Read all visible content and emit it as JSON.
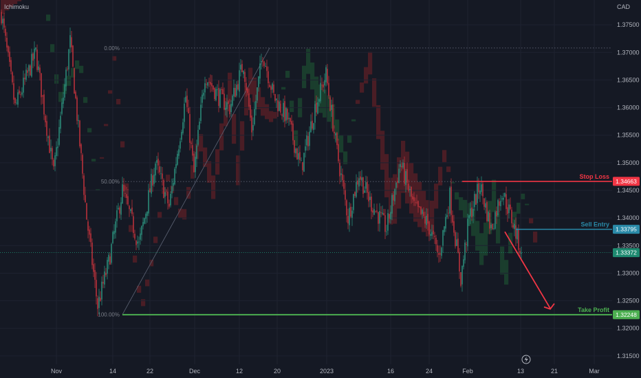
{
  "indicator_label": "Ichimoku",
  "currency": "CAD",
  "colors": {
    "background": "#151924",
    "bull": "#2a8a78",
    "bear": "#b8323a",
    "stop": "#f23645",
    "entry": "#2a8aa8",
    "take_profit": "#4caf50",
    "current": "#1e8a70",
    "cloud_bear": "#5c1f25",
    "cloud_bull": "#1c4a30"
  },
  "chart_data": {
    "type": "candlestick",
    "symbol": "",
    "ylim": [
      1.311,
      1.3795
    ],
    "y_ticks": [
      "1.37500",
      "1.37000",
      "1.36500",
      "1.36000",
      "1.35500",
      "1.35000",
      "1.34500",
      "1.34000",
      "1.33500",
      "1.33000",
      "1.32500",
      "1.32000",
      "1.31500"
    ],
    "x_ticks": [
      "Nov",
      "14",
      "22",
      "Dec",
      "12",
      "20",
      "2023",
      "16",
      "24",
      "Feb",
      "13",
      "21",
      "Mar"
    ],
    "fib_levels": [
      {
        "label": "0.00%",
        "price": 1.3708
      },
      {
        "label": "50.00%",
        "price": 1.3466
      },
      {
        "label": "100.00%",
        "price": 1.3225
      }
    ],
    "levels": [
      {
        "name": "Stop Loss",
        "price_label": "1.34663",
        "price": 1.34663,
        "color_key": "stop"
      },
      {
        "name": "Sell Entry",
        "price_label": "1.33795",
        "price": 1.33795,
        "color_key": "entry"
      },
      {
        "name": "Take Profit",
        "price_label": "1.32248",
        "price": 1.32248,
        "color_key": "take_profit"
      }
    ],
    "current_price": {
      "price_label": "1.33372",
      "price": 1.33372
    },
    "anchor_points": [
      [
        0,
        1.377
      ],
      [
        10,
        1.36
      ],
      [
        25,
        1.37
      ],
      [
        38,
        1.348
      ],
      [
        50,
        1.372
      ],
      [
        62,
        1.34
      ],
      [
        70,
        1.324
      ],
      [
        78,
        1.332
      ],
      [
        88,
        1.345
      ],
      [
        100,
        1.335
      ],
      [
        112,
        1.35
      ],
      [
        122,
        1.342
      ],
      [
        134,
        1.362
      ],
      [
        140,
        1.348
      ],
      [
        148,
        1.366
      ],
      [
        158,
        1.362
      ],
      [
        166,
        1.36
      ],
      [
        176,
        1.368
      ],
      [
        182,
        1.356
      ],
      [
        190,
        1.37
      ],
      [
        198,
        1.362
      ],
      [
        208,
        1.358
      ],
      [
        218,
        1.349
      ],
      [
        228,
        1.36
      ],
      [
        236,
        1.366
      ],
      [
        244,
        1.352
      ],
      [
        252,
        1.34
      ],
      [
        260,
        1.348
      ],
      [
        268,
        1.343
      ],
      [
        280,
        1.338
      ],
      [
        290,
        1.35
      ],
      [
        300,
        1.342
      ],
      [
        310,
        1.339
      ],
      [
        318,
        1.333
      ],
      [
        326,
        1.344
      ],
      [
        334,
        1.329
      ],
      [
        340,
        1.34
      ],
      [
        348,
        1.346
      ],
      [
        356,
        1.338
      ],
      [
        364,
        1.345
      ],
      [
        372,
        1.339
      ],
      [
        378,
        1.3337
      ]
    ],
    "projection": {
      "from_bar": 366,
      "from_price": 1.3375,
      "to_bar": 392,
      "to_price": 1.323
    }
  }
}
